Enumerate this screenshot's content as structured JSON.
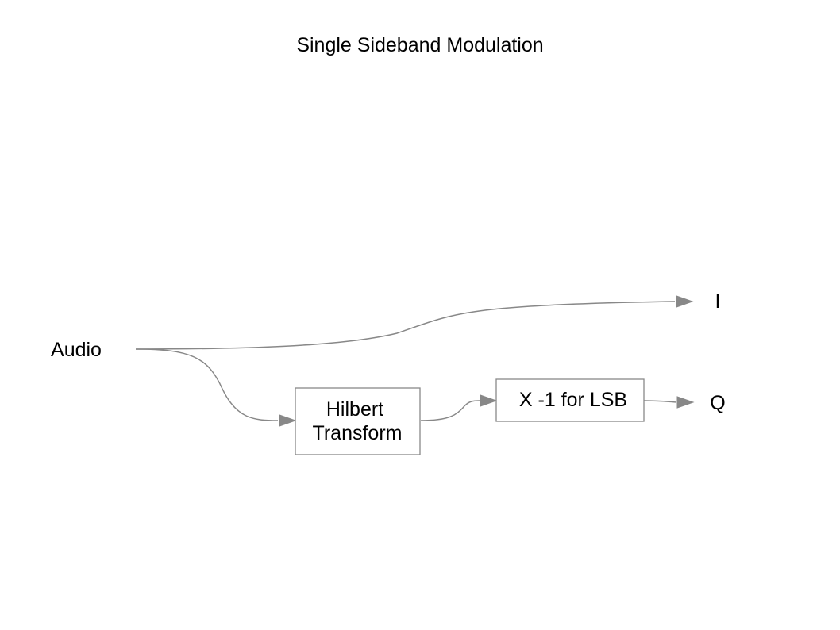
{
  "diagram": {
    "title": "Single Sideband Modulation",
    "nodes": {
      "audio": "Audio",
      "hilbert_line1": "Hilbert",
      "hilbert_line2": "Transform",
      "invert": "X -1 for LSB",
      "i_out": "I",
      "q_out": "Q"
    },
    "edges": [
      {
        "from": "Audio",
        "to": "I"
      },
      {
        "from": "Audio",
        "to": "Hilbert Transform"
      },
      {
        "from": "Hilbert Transform",
        "to": "X -1 for LSB"
      },
      {
        "from": "X -1 for LSB",
        "to": "Q"
      }
    ],
    "colors": {
      "stroke": "#888888",
      "text": "#000000",
      "background": "#ffffff"
    }
  }
}
